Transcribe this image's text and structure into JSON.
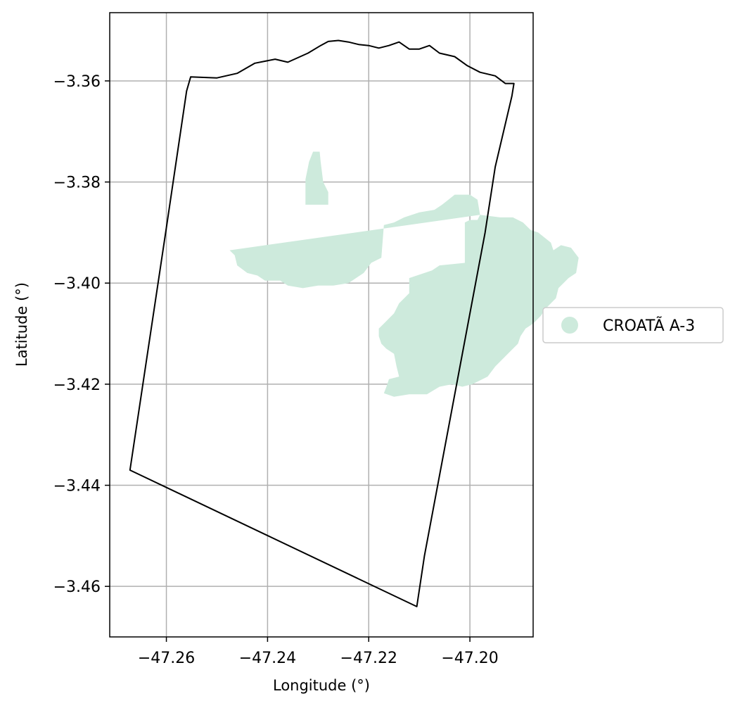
{
  "chart_data": {
    "type": "map",
    "xlabel": "Longitude (°)",
    "ylabel": "Latitude (°)",
    "xlim": [
      -47.2712,
      -47.1875
    ],
    "ylim": [
      -3.47,
      -3.3465
    ],
    "grid": true,
    "x_ticks": [
      {
        "value": -47.26,
        "label": "−47.26"
      },
      {
        "value": -47.24,
        "label": "−47.24"
      },
      {
        "value": -47.22,
        "label": "−47.22"
      },
      {
        "value": -47.2,
        "label": "−47.20"
      }
    ],
    "y_ticks": [
      {
        "value": -3.36,
        "label": "−3.36"
      },
      {
        "value": -3.38,
        "label": "−3.38"
      },
      {
        "value": -3.4,
        "label": "−3.40"
      },
      {
        "value": -3.42,
        "label": "−3.42"
      },
      {
        "value": -3.44,
        "label": "−3.44"
      },
      {
        "value": -3.46,
        "label": "−3.46"
      }
    ],
    "legend": {
      "placement": "right-center",
      "entries": [
        {
          "label": "CROATÃ A-3",
          "color": "#cdeadc"
        }
      ]
    },
    "colors": {
      "region_fill": "#cdeadc",
      "boundary": "#000000",
      "grid": "#b0b0b0"
    },
    "boundary": [
      [
        -47.2552,
        -3.3592
      ],
      [
        -47.25,
        -3.3594
      ],
      [
        -47.246,
        -3.3585
      ],
      [
        -47.2425,
        -3.3565
      ],
      [
        -47.2385,
        -3.3557
      ],
      [
        -47.236,
        -3.3563
      ],
      [
        -47.232,
        -3.3545
      ],
      [
        -47.2295,
        -3.353
      ],
      [
        -47.228,
        -3.3522
      ],
      [
        -47.226,
        -3.352
      ],
      [
        -47.224,
        -3.3523
      ],
      [
        -47.222,
        -3.3528
      ],
      [
        -47.22,
        -3.353
      ],
      [
        -47.218,
        -3.3535
      ],
      [
        -47.216,
        -3.353
      ],
      [
        -47.214,
        -3.3523
      ],
      [
        -47.212,
        -3.3537
      ],
      [
        -47.21,
        -3.3537
      ],
      [
        -47.208,
        -3.353
      ],
      [
        -47.206,
        -3.3545
      ],
      [
        -47.203,
        -3.3552
      ],
      [
        -47.2005,
        -3.357
      ],
      [
        -47.198,
        -3.3583
      ],
      [
        -47.195,
        -3.359
      ],
      [
        -47.193,
        -3.3605
      ],
      [
        -47.1913,
        -3.3605
      ],
      [
        -47.1917,
        -3.363
      ],
      [
        -47.195,
        -3.377
      ],
      [
        -47.197,
        -3.39
      ],
      [
        -47.209,
        -3.454
      ],
      [
        -47.2105,
        -3.464
      ],
      [
        -47.2672,
        -3.437
      ],
      [
        -47.26,
        -3.389
      ],
      [
        -47.256,
        -3.362
      ],
      [
        -47.2552,
        -3.3592
      ]
    ],
    "region": [
      [
        -47.231,
        -3.374
      ],
      [
        -47.2297,
        -3.374
      ],
      [
        -47.2295,
        -3.376
      ],
      [
        -47.229,
        -3.38
      ],
      [
        -47.228,
        -3.382
      ],
      [
        -47.228,
        -3.3845
      ],
      [
        -47.2325,
        -3.3845
      ],
      [
        -47.2325,
        -3.3795
      ],
      [
        -47.2318,
        -3.376
      ]
    ],
    "region_main": [
      [
        -47.2475,
        -3.3935
      ],
      [
        -47.2465,
        -3.3945
      ],
      [
        -47.246,
        -3.3965
      ],
      [
        -47.244,
        -3.398
      ],
      [
        -47.242,
        -3.3985
      ],
      [
        -47.2405,
        -3.3995
      ],
      [
        -47.2375,
        -3.3995
      ],
      [
        -47.236,
        -3.4005
      ],
      [
        -47.233,
        -3.401
      ],
      [
        -47.23,
        -3.4005
      ],
      [
        -47.227,
        -3.4005
      ],
      [
        -47.224,
        -3.4
      ],
      [
        -47.221,
        -3.398
      ],
      [
        -47.2195,
        -3.396
      ],
      [
        -47.2175,
        -3.395
      ],
      [
        -47.217,
        -3.3885
      ],
      [
        -47.215,
        -3.388
      ],
      [
        -47.213,
        -3.387
      ],
      [
        -47.21,
        -3.386
      ],
      [
        -47.207,
        -3.3855
      ],
      [
        -47.2055,
        -3.3845
      ],
      [
        -47.203,
        -3.3825
      ],
      [
        -47.2,
        -3.3825
      ],
      [
        -47.1985,
        -3.3835
      ],
      [
        -47.198,
        -3.3865
      ],
      [
        -47.1985,
        -3.3875
      ],
      [
        -47.2,
        -3.3875
      ],
      [
        -47.201,
        -3.388
      ],
      [
        -47.201,
        -3.396
      ],
      [
        -47.206,
        -3.3965
      ],
      [
        -47.2075,
        -3.3975
      ],
      [
        -47.212,
        -3.399
      ],
      [
        -47.212,
        -3.402
      ],
      [
        -47.214,
        -3.404
      ],
      [
        -47.215,
        -3.406
      ],
      [
        -47.217,
        -3.408
      ],
      [
        -47.218,
        -3.409
      ],
      [
        -47.218,
        -3.4105
      ],
      [
        -47.2175,
        -3.412
      ],
      [
        -47.2165,
        -3.413
      ],
      [
        -47.215,
        -3.414
      ],
      [
        -47.2145,
        -3.4165
      ],
      [
        -47.214,
        -3.4185
      ],
      [
        -47.216,
        -3.419
      ],
      [
        -47.2165,
        -3.4205
      ],
      [
        -47.217,
        -3.4218
      ],
      [
        -47.215,
        -3.4225
      ],
      [
        -47.212,
        -3.422
      ],
      [
        -47.2085,
        -3.422
      ],
      [
        -47.206,
        -3.4205
      ],
      [
        -47.2035,
        -3.42
      ],
      [
        -47.2015,
        -3.4205
      ],
      [
        -47.1995,
        -3.42
      ],
      [
        -47.1965,
        -3.4185
      ],
      [
        -47.195,
        -3.4165
      ],
      [
        -47.1935,
        -3.415
      ],
      [
        -47.1925,
        -3.414
      ],
      [
        -47.1905,
        -3.412
      ],
      [
        -47.19,
        -3.4105
      ],
      [
        -47.189,
        -3.409
      ],
      [
        -47.1875,
        -3.408
      ],
      [
        -47.186,
        -3.4065
      ],
      [
        -47.185,
        -3.405
      ],
      [
        -47.184,
        -3.404
      ],
      [
        -47.183,
        -3.403
      ],
      [
        -47.1825,
        -3.401
      ],
      [
        -47.1815,
        -3.4
      ],
      [
        -47.1805,
        -3.399
      ],
      [
        -47.179,
        -3.398
      ],
      [
        -47.1785,
        -3.395
      ],
      [
        -47.18,
        -3.393
      ],
      [
        -47.182,
        -3.3925
      ],
      [
        -47.1835,
        -3.3935
      ],
      [
        -47.184,
        -3.392
      ],
      [
        -47.1865,
        -3.39
      ],
      [
        -47.188,
        -3.3895
      ],
      [
        -47.1895,
        -3.388
      ],
      [
        -47.1915,
        -3.387
      ],
      [
        -47.194,
        -3.387
      ],
      [
        -47.198,
        -3.3865
      ]
    ]
  }
}
